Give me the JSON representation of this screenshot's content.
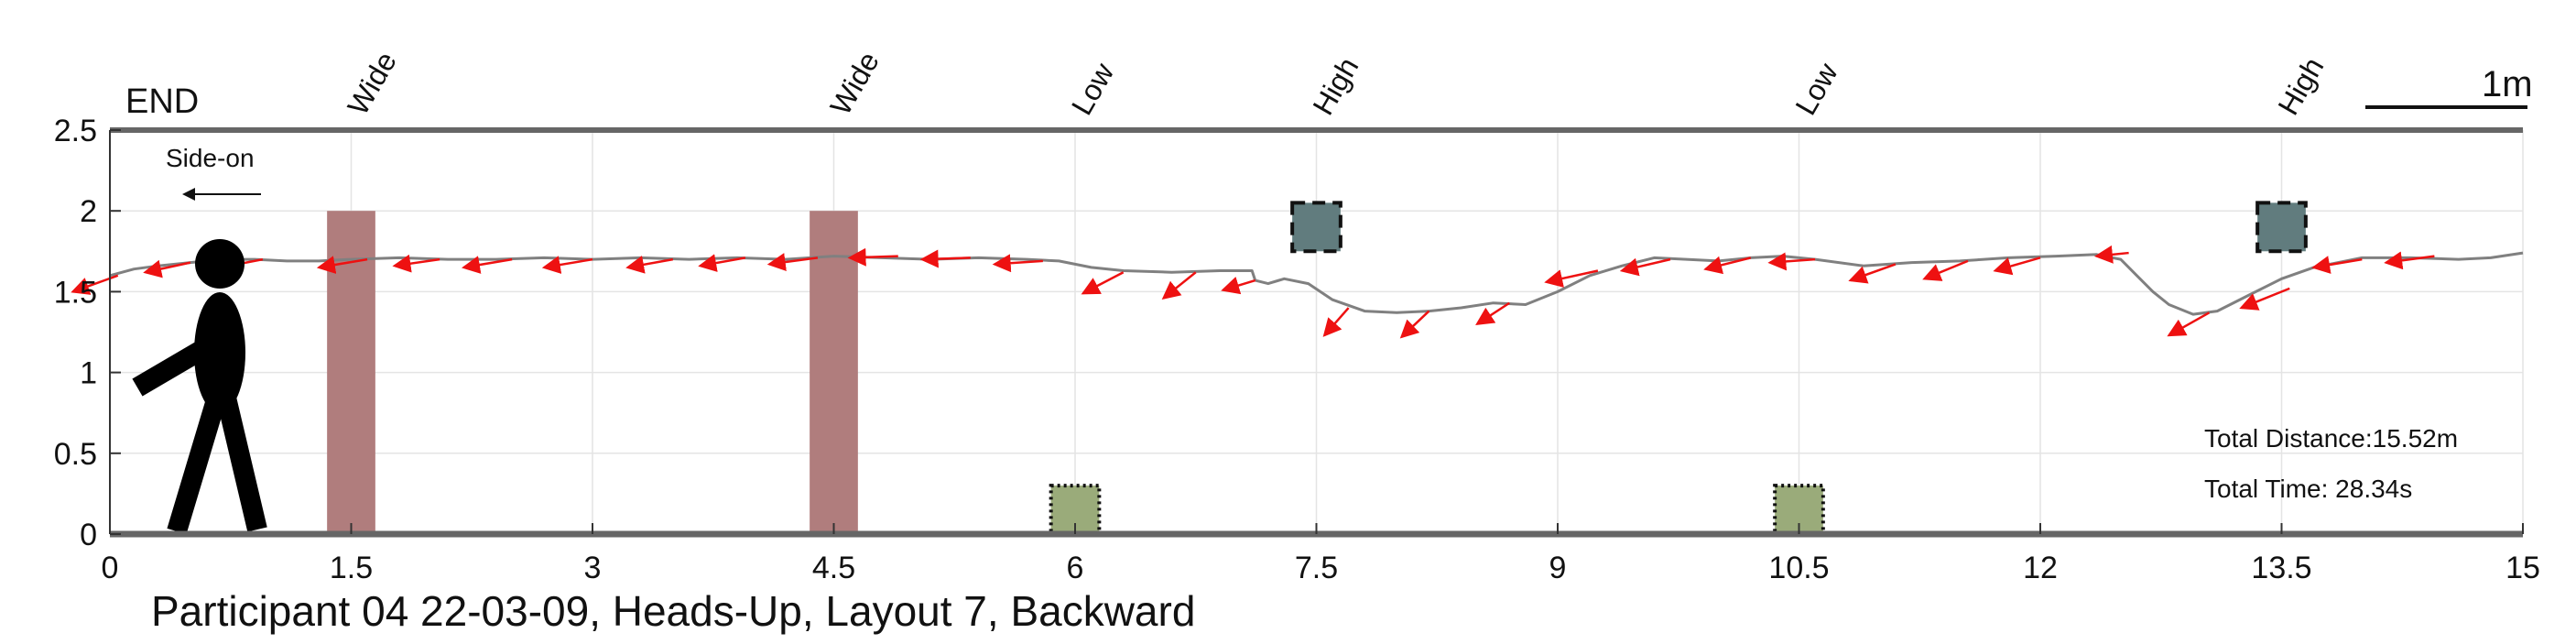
{
  "chart_data": {
    "type": "line",
    "title": "Participant 04 22-03-09, Heads-Up, Layout 7, Backward",
    "xlabel": "",
    "ylabel": "",
    "xlim": [
      0,
      15
    ],
    "ylim": [
      0,
      2.5
    ],
    "x_ticks": [
      "0",
      "1.5",
      "3",
      "4.5",
      "6",
      "7.5",
      "9",
      "10.5",
      "12",
      "13.5",
      "15"
    ],
    "y_ticks": [
      "0",
      "0.5",
      "1",
      "1.5",
      "2",
      "2.5"
    ],
    "grid": true,
    "end_label": "END",
    "direction_label": "Side-on",
    "scale_bar_label": "1m",
    "obstacle_labels": [
      {
        "x": 1.5,
        "text": "Wide"
      },
      {
        "x": 4.5,
        "text": "Wide"
      },
      {
        "x": 6.0,
        "text": "Low"
      },
      {
        "x": 7.5,
        "text": "High"
      },
      {
        "x": 10.5,
        "text": "Low"
      },
      {
        "x": 13.5,
        "text": "High"
      }
    ],
    "obstacles": [
      {
        "kind": "wide",
        "x0": 1.35,
        "x1": 1.65,
        "y0": 0,
        "y1": 2.0
      },
      {
        "kind": "wide",
        "x0": 4.35,
        "x1": 4.65,
        "y0": 0,
        "y1": 2.0
      },
      {
        "kind": "low",
        "x0": 5.85,
        "x1": 6.15,
        "y0": 0,
        "y1": 0.3
      },
      {
        "kind": "low",
        "x0": 10.35,
        "x1": 10.65,
        "y0": 0,
        "y1": 0.3
      },
      {
        "kind": "high",
        "x0": 7.35,
        "x1": 7.65,
        "y0": 1.75,
        "y1": 2.05
      },
      {
        "kind": "high",
        "x0": 13.35,
        "x1": 13.65,
        "y0": 1.75,
        "y1": 2.05
      }
    ],
    "series": [
      {
        "x": [
          0.0,
          0.15,
          0.3,
          0.5,
          0.7,
          0.9,
          1.1,
          1.3,
          1.5,
          1.8,
          2.1,
          2.4,
          2.7,
          3.0,
          3.3,
          3.6,
          3.9,
          4.2,
          4.5,
          4.8,
          5.1,
          5.4,
          5.7,
          5.9,
          6.1,
          6.3,
          6.6,
          6.9,
          7.1,
          7.12,
          7.2,
          7.3,
          7.45,
          7.6,
          7.8,
          8.0,
          8.2,
          8.4,
          8.6,
          8.8,
          9.0,
          9.2,
          9.4,
          9.6,
          9.8,
          10.0,
          10.2,
          10.4,
          10.6,
          10.9,
          11.2,
          11.5,
          11.8,
          12.1,
          12.35,
          12.5,
          12.6,
          12.7,
          12.8,
          12.95,
          13.1,
          13.3,
          13.5,
          13.7,
          14.0,
          14.3,
          14.6,
          14.8,
          15.0
        ],
        "y": [
          1.6,
          1.64,
          1.66,
          1.68,
          1.7,
          1.7,
          1.69,
          1.69,
          1.7,
          1.71,
          1.7,
          1.7,
          1.71,
          1.7,
          1.71,
          1.7,
          1.71,
          1.7,
          1.72,
          1.71,
          1.7,
          1.71,
          1.7,
          1.69,
          1.65,
          1.63,
          1.62,
          1.63,
          1.63,
          1.57,
          1.55,
          1.58,
          1.55,
          1.45,
          1.38,
          1.37,
          1.38,
          1.4,
          1.43,
          1.42,
          1.5,
          1.6,
          1.66,
          1.71,
          1.7,
          1.69,
          1.71,
          1.72,
          1.7,
          1.66,
          1.68,
          1.69,
          1.71,
          1.72,
          1.73,
          1.7,
          1.6,
          1.5,
          1.42,
          1.36,
          1.38,
          1.48,
          1.58,
          1.65,
          1.71,
          1.71,
          1.7,
          1.71,
          1.74
        ]
      }
    ],
    "orientation_arrows": [
      {
        "x": 0.05,
        "y": 1.6,
        "dx": -0.28,
        "dy": -0.1
      },
      {
        "x": 0.5,
        "y": 1.68,
        "dx": -0.28,
        "dy": -0.06
      },
      {
        "x": 0.95,
        "y": 1.7,
        "dx": -0.26,
        "dy": -0.05
      },
      {
        "x": 1.6,
        "y": 1.7,
        "dx": -0.3,
        "dy": -0.05
      },
      {
        "x": 2.05,
        "y": 1.7,
        "dx": -0.28,
        "dy": -0.04
      },
      {
        "x": 2.5,
        "y": 1.7,
        "dx": -0.3,
        "dy": -0.05
      },
      {
        "x": 3.0,
        "y": 1.7,
        "dx": -0.3,
        "dy": -0.05
      },
      {
        "x": 3.5,
        "y": 1.7,
        "dx": -0.28,
        "dy": -0.05
      },
      {
        "x": 3.95,
        "y": 1.71,
        "dx": -0.28,
        "dy": -0.05
      },
      {
        "x": 4.4,
        "y": 1.71,
        "dx": -0.3,
        "dy": -0.04
      },
      {
        "x": 4.9,
        "y": 1.72,
        "dx": -0.3,
        "dy": -0.01
      },
      {
        "x": 5.35,
        "y": 1.71,
        "dx": -0.3,
        "dy": -0.01
      },
      {
        "x": 5.8,
        "y": 1.69,
        "dx": -0.3,
        "dy": -0.02
      },
      {
        "x": 6.3,
        "y": 1.62,
        "dx": -0.25,
        "dy": -0.13
      },
      {
        "x": 6.75,
        "y": 1.62,
        "dx": -0.2,
        "dy": -0.16
      },
      {
        "x": 7.12,
        "y": 1.57,
        "dx": -0.2,
        "dy": -0.06
      },
      {
        "x": 7.7,
        "y": 1.4,
        "dx": -0.15,
        "dy": -0.17
      },
      {
        "x": 8.2,
        "y": 1.38,
        "dx": -0.17,
        "dy": -0.16
      },
      {
        "x": 8.7,
        "y": 1.43,
        "dx": -0.2,
        "dy": -0.13
      },
      {
        "x": 9.25,
        "y": 1.63,
        "dx": -0.32,
        "dy": -0.07
      },
      {
        "x": 9.7,
        "y": 1.7,
        "dx": -0.3,
        "dy": -0.07
      },
      {
        "x": 10.2,
        "y": 1.71,
        "dx": -0.28,
        "dy": -0.07
      },
      {
        "x": 10.6,
        "y": 1.7,
        "dx": -0.28,
        "dy": -0.02
      },
      {
        "x": 11.1,
        "y": 1.67,
        "dx": -0.28,
        "dy": -0.1
      },
      {
        "x": 11.55,
        "y": 1.69,
        "dx": -0.27,
        "dy": -0.11
      },
      {
        "x": 12.0,
        "y": 1.71,
        "dx": -0.28,
        "dy": -0.08
      },
      {
        "x": 12.55,
        "y": 1.74,
        "dx": -0.2,
        "dy": -0.02
      },
      {
        "x": 13.05,
        "y": 1.37,
        "dx": -0.25,
        "dy": -0.14
      },
      {
        "x": 13.55,
        "y": 1.52,
        "dx": -0.3,
        "dy": -0.12
      },
      {
        "x": 14.0,
        "y": 1.7,
        "dx": -0.3,
        "dy": -0.05
      },
      {
        "x": 14.45,
        "y": 1.72,
        "dx": -0.3,
        "dy": -0.04
      }
    ],
    "stats": [
      {
        "label": "Total Distance:",
        "value": "15.52m"
      },
      {
        "label": "Total Time:",
        "value": " 28.34s"
      }
    ],
    "colors": {
      "path": "#808080",
      "arrow": "#ee1111",
      "wide": "#b07d7d",
      "low": "#9aab7a",
      "high": "#617c7e",
      "axis": "#666666",
      "grid": "#e4e4e4"
    }
  }
}
